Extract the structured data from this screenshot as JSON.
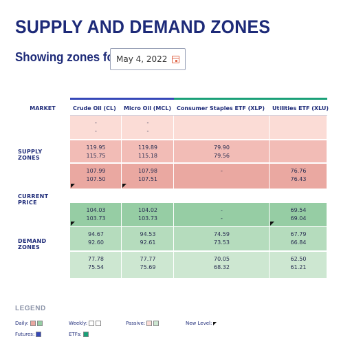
{
  "header": {
    "title": "SUPPLY AND DEMAND ZONES",
    "showing_label": "Showing zones for:",
    "date_value": "May 4, 2022",
    "calendar_icon": "calendar-icon"
  },
  "table": {
    "market_label": "MARKET",
    "columns": [
      {
        "label": "Crude Oil (CL)",
        "type": "Futures"
      },
      {
        "label": "Micro Oil (MCL)",
        "type": "Futures"
      },
      {
        "label": "Consumer Staples ETF (XLP)",
        "type": "ETFs"
      },
      {
        "label": "Utilities ETF (XLU)",
        "type": "ETFs"
      }
    ],
    "supply_label": "SUPPLY ZONES",
    "current_price_label": "CURRENT PRICE",
    "demand_label": "DEMAND ZONES",
    "supply_rows": [
      {
        "zone": "Passive",
        "cells": [
          [
            "-",
            "-"
          ],
          [
            "-",
            "-"
          ],
          [
            "",
            ""
          ],
          [
            "",
            ""
          ]
        ]
      },
      {
        "zone": "Weekly",
        "cells": [
          [
            "119.95",
            "115.75"
          ],
          [
            "119.89",
            "115.18"
          ],
          [
            "79.90",
            "79.56"
          ],
          [
            "",
            ""
          ]
        ]
      },
      {
        "zone": "Daily",
        "cells": [
          [
            "107.99",
            "107.50"
          ],
          [
            "107.98",
            "107.51"
          ],
          [
            "-",
            ""
          ],
          [
            "76.76",
            "76.43"
          ]
        ]
      }
    ],
    "demand_rows": [
      {
        "zone": "Daily",
        "cells": [
          [
            "104.03",
            "103.73"
          ],
          [
            "104.02",
            "103.73"
          ],
          [
            "-",
            "-"
          ],
          [
            "69.54",
            "69.04"
          ]
        ]
      },
      {
        "zone": "Weekly",
        "cells": [
          [
            "94.67",
            "92.60"
          ],
          [
            "94.53",
            "92.61"
          ],
          [
            "74.59",
            "73.53"
          ],
          [
            "67.79",
            "66.84"
          ]
        ]
      },
      {
        "zone": "Passive",
        "cells": [
          [
            "77.78",
            "75.54"
          ],
          [
            "77.77",
            "75.69"
          ],
          [
            "70.05",
            "68.32"
          ],
          [
            "62.50",
            "61.21"
          ]
        ]
      }
    ]
  },
  "legend": {
    "title": "LEGEND",
    "daily_label": "Daily:",
    "weekly_label": "Weekly:",
    "passive_label": "Passive:",
    "new_level_label": "New Level:",
    "futures_label": "Futures:",
    "etfs_label": "ETFs:"
  },
  "colors": {
    "futures": "#3548b8",
    "etfs": "#1aa078",
    "supply_passive": "#fbdcd6",
    "supply_weekly": "#f2bcb6",
    "supply_daily": "#eaa8a1",
    "demand_daily": "#96cda4",
    "demand_weekly": "#b5dcbd",
    "demand_passive": "#cde7d1"
  }
}
